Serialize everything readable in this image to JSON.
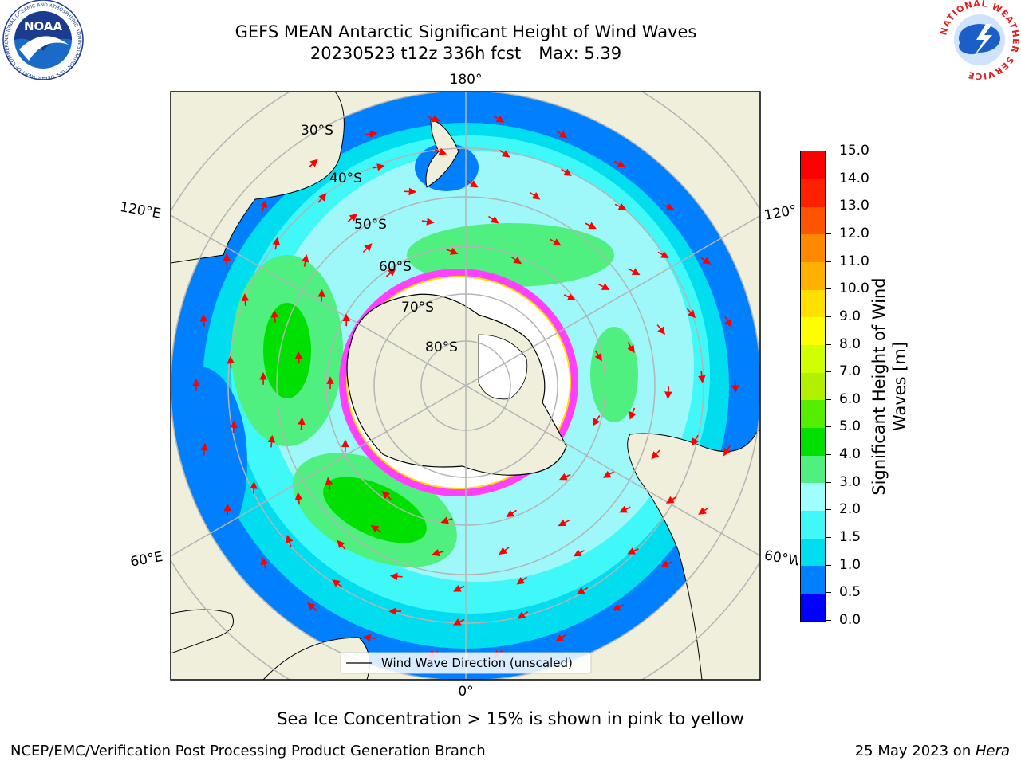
{
  "header": {
    "title_line1": "GEFS MEAN Antarctic Significant Height of Wind Waves",
    "title_date": "20230523 t12z 336h fcst",
    "title_max": "Max: 5.39"
  },
  "logos": {
    "noaa_text": "NOAA",
    "noaa_ring": "NATIONAL OCEANIC AND ATMOSPHERIC ADMINISTRATION · U.S. DEPARTMENT OF COMMERCE",
    "nws_ring": "NATIONAL WEATHER SERVICE"
  },
  "map": {
    "longitude_labels": {
      "top": "180°",
      "bottom": "0°",
      "left_upper": "120°E",
      "left_lower": "60°E",
      "right_upper": "120°",
      "right_lower": "60°W"
    },
    "latitude_labels": [
      "30°S",
      "40°S",
      "50°S",
      "60°S",
      "70°S",
      "80°S"
    ],
    "legend_label": "Wind Wave Direction (unscaled)",
    "arrow_color": "#ff0000",
    "ocean_color": "#9ef7f8",
    "land_color": "#efefdc"
  },
  "colorbar": {
    "label_line1": "Significant Height of Wind",
    "label_line2": "Waves [m]",
    "ticks": [
      "0.0",
      "0.5",
      "1.0",
      "1.5",
      "2.0",
      "3.0",
      "4.0",
      "5.0",
      "6.0",
      "7.0",
      "8.0",
      "9.0",
      "10.0",
      "11.0",
      "12.0",
      "13.0",
      "14.0",
      "15.0"
    ],
    "colors": [
      "#0000ff",
      "#0080ff",
      "#00ddee",
      "#40f8f8",
      "#a0ffff",
      "#50f080",
      "#00e000",
      "#55ee00",
      "#b0f000",
      "#d0ff00",
      "#ffff00",
      "#ffe000",
      "#ffb000",
      "#ff8800",
      "#ff5500",
      "#ff2000",
      "#ff0000"
    ]
  },
  "note": "Sea Ice Concentration > 15% is shown in pink to yellow",
  "footer": {
    "left": "NCEP/EMC/Verification Post Processing Product Generation Branch",
    "right_prefix": "25 May 2023 on ",
    "right_system": "Hera"
  }
}
